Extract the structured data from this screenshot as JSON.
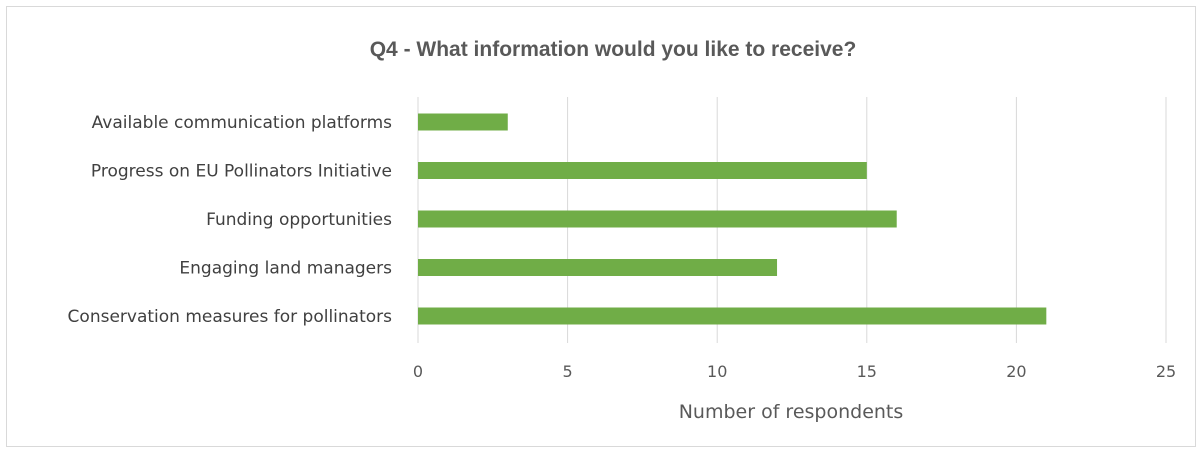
{
  "chart_data": {
    "type": "bar",
    "orientation": "horizontal",
    "title": "Q4 - What information would you like to receive?",
    "xlabel": "Number of respondents",
    "ylabel": "",
    "categories": [
      "Available communication platforms",
      "Progress on EU Pollinators Initiative",
      "Funding opportunities",
      "Engaging land managers",
      "Conservation measures for pollinators"
    ],
    "values": [
      3,
      15,
      16,
      12,
      21
    ],
    "xlim": [
      0,
      25
    ],
    "xticks": [
      0,
      5,
      10,
      15,
      20,
      25
    ],
    "grid": true,
    "legend": "none",
    "bar_color": "#70ad47"
  }
}
